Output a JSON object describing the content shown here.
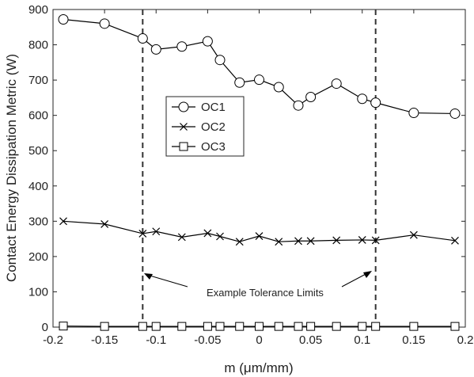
{
  "chart_data": {
    "type": "line",
    "xlabel": "m (μm/mm)",
    "ylabel": "Contact Energy Dissipation Metric (W)",
    "xlim": [
      -0.2,
      0.2
    ],
    "ylim": [
      0,
      900
    ],
    "xticks": [
      "-0.2",
      "-0.15",
      "-0.1",
      "-0.05",
      "0",
      "0.05",
      "0.1",
      "0.15",
      "0.2"
    ],
    "yticks": [
      "0",
      "100",
      "200",
      "300",
      "400",
      "500",
      "600",
      "700",
      "800",
      "900"
    ],
    "grid": false,
    "legend_position": "center-left",
    "x": [
      -0.19,
      -0.15,
      -0.113,
      -0.1,
      -0.075,
      -0.05,
      -0.038,
      -0.019,
      0,
      0.019,
      0.038,
      0.05,
      0.075,
      0.1,
      0.113,
      0.15,
      0.19
    ],
    "series": [
      {
        "name": "OC1",
        "marker": "circle",
        "color": "#000000",
        "values": [
          872,
          860,
          818,
          787,
          795,
          810,
          757,
          693,
          701,
          680,
          628,
          652,
          690,
          647,
          636,
          607,
          605
        ]
      },
      {
        "name": "OC2",
        "marker": "x",
        "color": "#000000",
        "values": [
          300,
          292,
          265,
          271,
          255,
          266,
          257,
          242,
          258,
          242,
          244,
          244,
          246,
          247,
          246,
          261,
          245
        ]
      },
      {
        "name": "OC3",
        "marker": "square",
        "color": "#000000",
        "values": [
          3,
          2,
          2,
          2,
          2,
          2,
          2,
          2,
          2,
          2,
          2,
          2,
          2,
          2,
          2,
          2,
          2
        ]
      }
    ],
    "tolerance_limits": [
      -0.113,
      0.113
    ],
    "annotation": "Example Tolerance Limits"
  }
}
